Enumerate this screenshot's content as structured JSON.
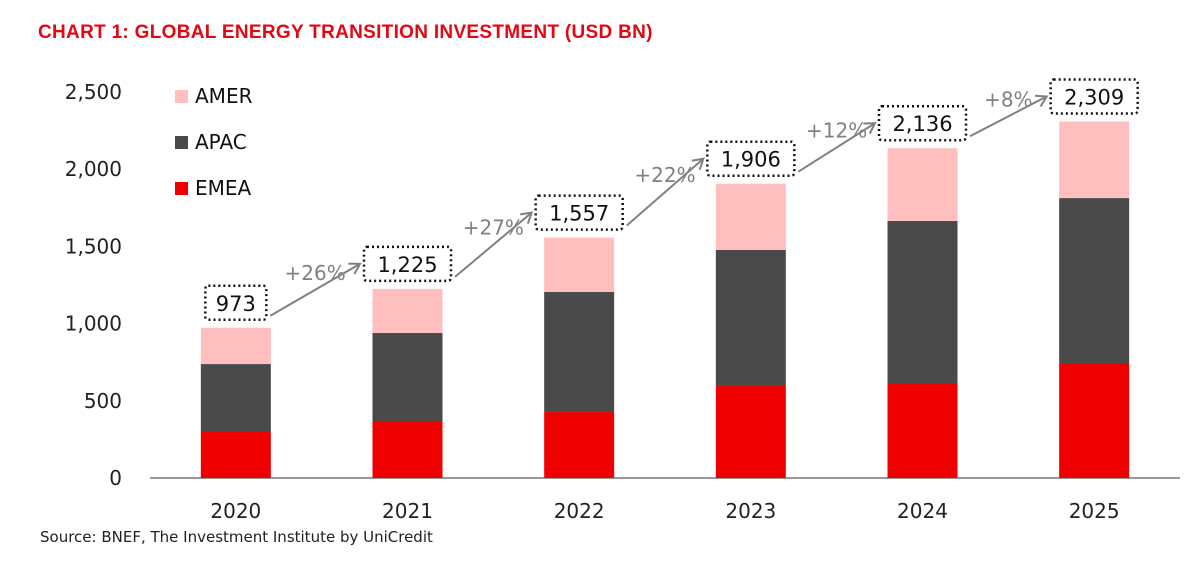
{
  "chart_data": {
    "type": "bar",
    "stacked": true,
    "title": "CHART 1: GLOBAL ENERGY TRANSITION INVESTMENT (USD BN)",
    "categories": [
      "2020",
      "2021",
      "2022",
      "2023",
      "2024",
      "2025"
    ],
    "series": [
      {
        "name": "EMEA",
        "color": "#ee0000",
        "values": [
          298,
          369,
          427,
          602,
          615,
          745
        ]
      },
      {
        "name": "APAC",
        "color": "#4a4a4a",
        "values": [
          440,
          570,
          778,
          875,
          1050,
          1068
        ]
      },
      {
        "name": "AMER",
        "color": "#ffbfbf",
        "values": [
          235,
          286,
          352,
          429,
          471,
          496
        ]
      }
    ],
    "totals": [
      "973",
      "1,225",
      "1,557",
      "1,906",
      "2,136",
      "2,309"
    ],
    "growth_labels": [
      "+26%",
      "+27%",
      "+22%",
      "+12%",
      "+8%"
    ],
    "yticks": [
      "0",
      "500",
      "1,000",
      "1,500",
      "2,000",
      "2,500"
    ],
    "ylim": [
      0,
      2500
    ],
    "legend_order": [
      "AMER",
      "APAC",
      "EMEA"
    ],
    "legend_placement": "top-left",
    "grid": false,
    "source": "Source: BNEF, The Investment Institute by UniCredit"
  }
}
